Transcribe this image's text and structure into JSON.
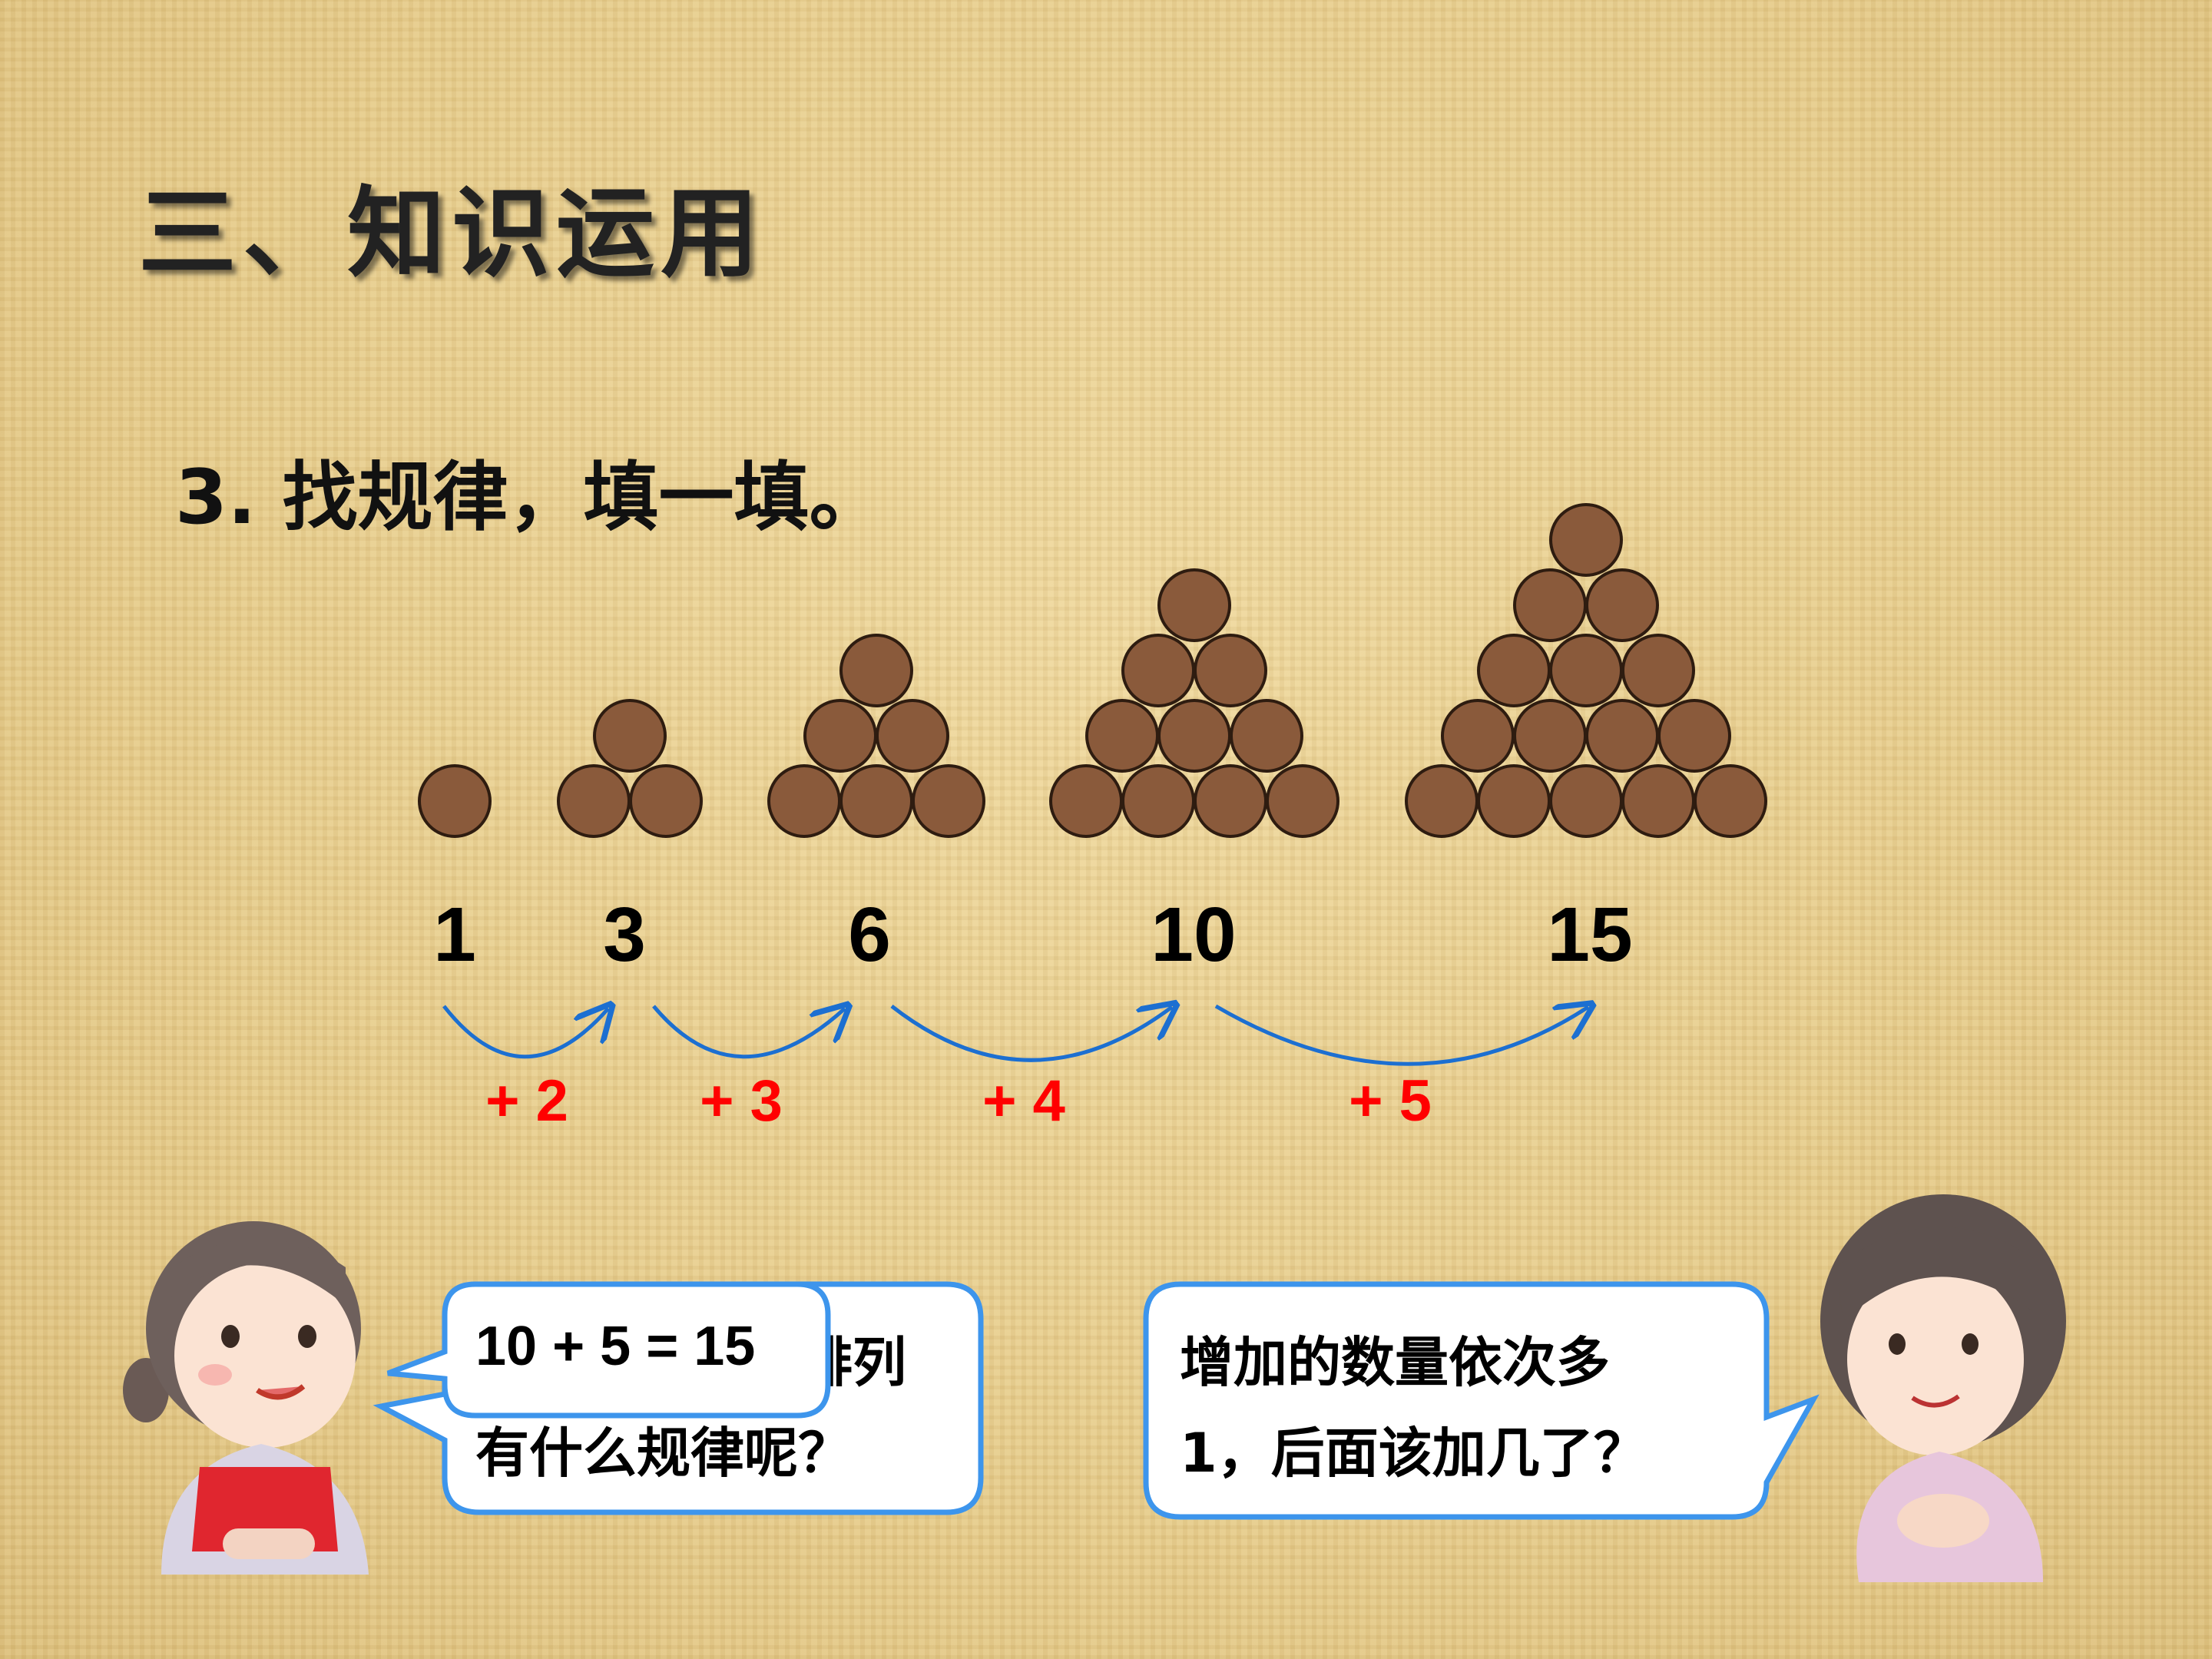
{
  "title": "三、知识运用",
  "subtitle": "3. 找规律，填一填。",
  "colors": {
    "dot": "#8a5a3b",
    "arrow": "#1c6fd1",
    "increment": "#ff0000",
    "bubble_border": "#3d95ec"
  },
  "sequence": [
    {
      "value": "1",
      "dots": 1
    },
    {
      "value": "3",
      "dots": 3
    },
    {
      "value": "6",
      "dots": 6
    },
    {
      "value": "10",
      "dots": 10
    },
    {
      "value": "15",
      "dots": 15
    }
  ],
  "increments": [
    "+ 2",
    "+ 3",
    "+ 4",
    "+ 5"
  ],
  "left_bubble": {
    "line1_visible": "排列",
    "line2": "有什么规律呢？",
    "overlay_equation": "10 + 5 = 15"
  },
  "right_bubble": {
    "line1": "增加的数量依次多",
    "line2": "1，后面该加几了？"
  }
}
